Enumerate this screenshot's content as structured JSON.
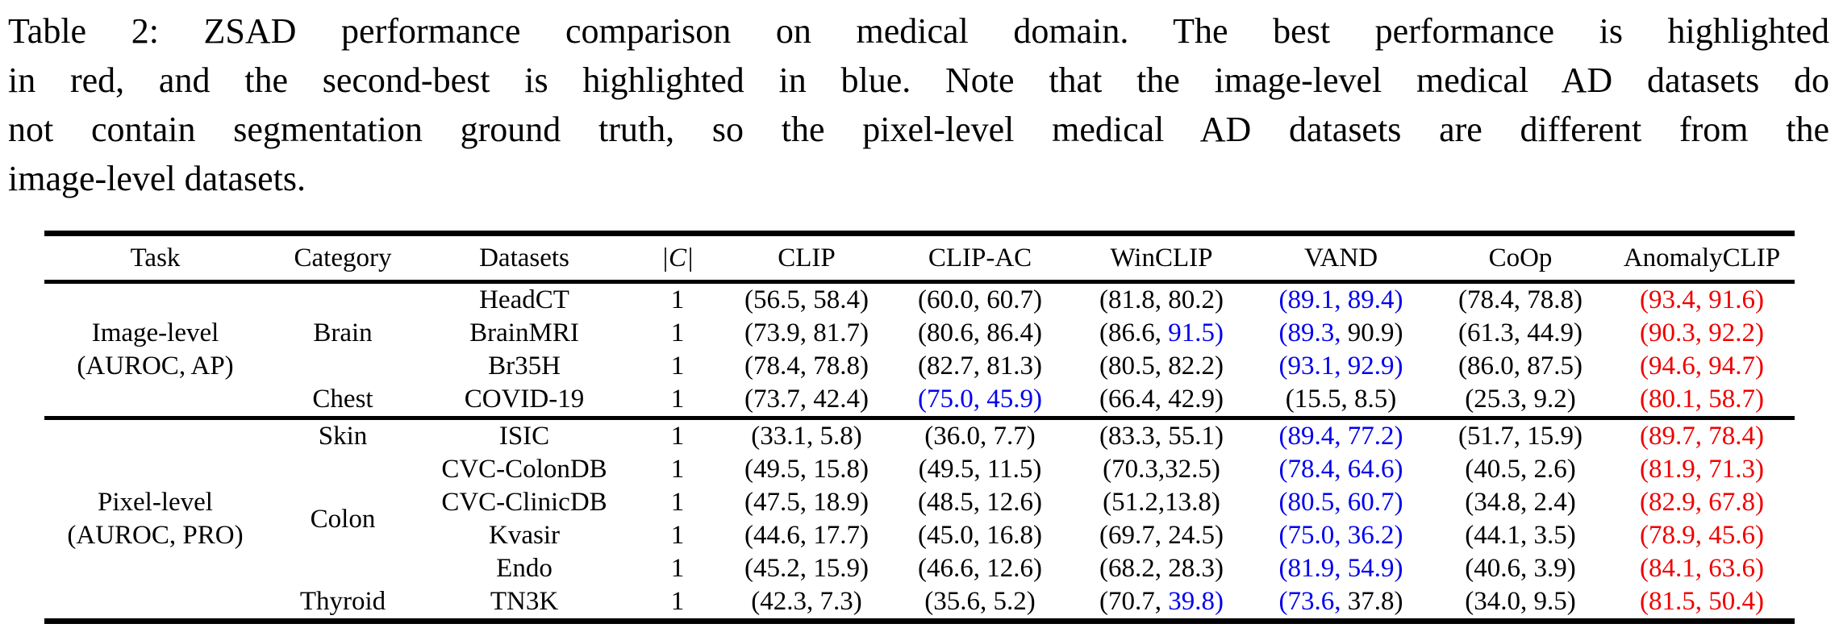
{
  "caption": {
    "lines": [
      "Table 2: ZSAD performance comparison on medical domain. The best performance is highlighted",
      "in red, and the second-best is highlighted in blue. Note that the image-level medical AD datasets do",
      "not contain segmentation ground truth, so the pixel-level medical AD datasets are different from the",
      "image-level datasets."
    ]
  },
  "colors": {
    "k": "#000000",
    "r": "#ee0000",
    "b": "#0000ee"
  },
  "highlight_legend": {
    "best": "#ee0000",
    "second_best": "#0000ee",
    "normal": "#000000"
  },
  "table": {
    "headers": [
      "Task",
      "Category",
      "Datasets",
      "|C|",
      "CLIP",
      "CLIP-AC",
      "WinCLIP",
      "VAND",
      "CoOp",
      "AnomalyCLIP"
    ],
    "sections": [
      {
        "task_lines": [
          "Image-level",
          "(AUROC, AP)"
        ],
        "groups": [
          {
            "category": "Brain",
            "rows": [
              {
                "dataset": "HeadCT",
                "c": "1",
                "cells": [
                  [
                    "56.5",
                    "k",
                    "58.4",
                    "k"
                  ],
                  [
                    "60.0",
                    "k",
                    "60.7",
                    "k"
                  ],
                  [
                    "81.8",
                    "k",
                    "80.2",
                    "k"
                  ],
                  [
                    "89.1",
                    "b",
                    "89.4",
                    "b"
                  ],
                  [
                    "78.4",
                    "k",
                    "78.8",
                    "k"
                  ],
                  [
                    "93.4",
                    "r",
                    "91.6",
                    "r"
                  ]
                ]
              },
              {
                "dataset": "BrainMRI",
                "c": "1",
                "cells": [
                  [
                    "73.9",
                    "k",
                    "81.7",
                    "k"
                  ],
                  [
                    "80.6",
                    "k",
                    "86.4",
                    "k"
                  ],
                  [
                    "86.6",
                    "k",
                    "91.5",
                    "b"
                  ],
                  [
                    "89.3",
                    "b",
                    "90.9",
                    "k"
                  ],
                  [
                    "61.3",
                    "k",
                    "44.9",
                    "k"
                  ],
                  [
                    "90.3",
                    "r",
                    "92.2",
                    "r"
                  ]
                ]
              },
              {
                "dataset": "Br35H",
                "c": "1",
                "cells": [
                  [
                    "78.4",
                    "k",
                    "78.8",
                    "k"
                  ],
                  [
                    "82.7",
                    "k",
                    "81.3",
                    "k"
                  ],
                  [
                    "80.5",
                    "k",
                    "82.2",
                    "k"
                  ],
                  [
                    "93.1",
                    "b",
                    "92.9",
                    "b"
                  ],
                  [
                    "86.0",
                    "k",
                    "87.5",
                    "k"
                  ],
                  [
                    "94.6",
                    "r",
                    "94.7",
                    "r"
                  ]
                ]
              }
            ]
          },
          {
            "category": "Chest",
            "rows": [
              {
                "dataset": "COVID-19",
                "c": "1",
                "cells": [
                  [
                    "73.7",
                    "k",
                    "42.4",
                    "k"
                  ],
                  [
                    "75.0",
                    "b",
                    "45.9",
                    "b"
                  ],
                  [
                    "66.4",
                    "k",
                    "42.9",
                    "k"
                  ],
                  [
                    "15.5",
                    "k",
                    "8.5",
                    "k"
                  ],
                  [
                    "25.3",
                    "k",
                    "9.2",
                    "k"
                  ],
                  [
                    "80.1",
                    "r",
                    "58.7",
                    "r"
                  ]
                ]
              }
            ]
          }
        ]
      },
      {
        "task_lines": [
          "Pixel-level",
          "(AUROC, PRO)"
        ],
        "groups": [
          {
            "category": "Skin",
            "rows": [
              {
                "dataset": "ISIC",
                "c": "1",
                "cells": [
                  [
                    "33.1",
                    "k",
                    "5.8",
                    "k"
                  ],
                  [
                    "36.0",
                    "k",
                    "7.7",
                    "k"
                  ],
                  [
                    "83.3",
                    "k",
                    "55.1",
                    "k"
                  ],
                  [
                    "89.4",
                    "b",
                    "77.2",
                    "b"
                  ],
                  [
                    "51.7",
                    "k",
                    "15.9",
                    "k"
                  ],
                  [
                    "89.7",
                    "r",
                    "78.4",
                    "r"
                  ]
                ]
              }
            ]
          },
          {
            "category": "Colon",
            "rows": [
              {
                "dataset": "CVC-ColonDB",
                "c": "1",
                "cells": [
                  [
                    "49.5",
                    "k",
                    "15.8",
                    "k"
                  ],
                  [
                    "49.5",
                    "k",
                    "11.5",
                    "k"
                  ],
                  [
                    "70.3",
                    "k",
                    "32.5",
                    "k",
                    1
                  ],
                  [
                    "78.4",
                    "b",
                    "64.6",
                    "b"
                  ],
                  [
                    "40.5",
                    "k",
                    "2.6",
                    "k"
                  ],
                  [
                    "81.9",
                    "r",
                    "71.3",
                    "r"
                  ]
                ]
              },
              {
                "dataset": "CVC-ClinicDB",
                "c": "1",
                "cells": [
                  [
                    "47.5",
                    "k",
                    "18.9",
                    "k"
                  ],
                  [
                    "48.5",
                    "k",
                    "12.6",
                    "k"
                  ],
                  [
                    "51.2",
                    "k",
                    "13.8",
                    "k",
                    1
                  ],
                  [
                    "80.5",
                    "b",
                    "60.7",
                    "b"
                  ],
                  [
                    "34.8",
                    "k",
                    "2.4",
                    "k"
                  ],
                  [
                    "82.9",
                    "r",
                    "67.8",
                    "r"
                  ]
                ]
              },
              {
                "dataset": "Kvasir",
                "c": "1",
                "cells": [
                  [
                    "44.6",
                    "k",
                    "17.7",
                    "k"
                  ],
                  [
                    "45.0",
                    "k",
                    "16.8",
                    "k"
                  ],
                  [
                    "69.7",
                    "k",
                    "24.5",
                    "k"
                  ],
                  [
                    "75.0",
                    "b",
                    "36.2",
                    "b"
                  ],
                  [
                    "44.1",
                    "k",
                    "3.5",
                    "k"
                  ],
                  [
                    "78.9",
                    "r",
                    "45.6",
                    "r"
                  ]
                ]
              },
              {
                "dataset": "Endo",
                "c": "1",
                "cells": [
                  [
                    "45.2",
                    "k",
                    "15.9",
                    "k"
                  ],
                  [
                    "46.6",
                    "k",
                    "12.6",
                    "k"
                  ],
                  [
                    "68.2",
                    "k",
                    "28.3",
                    "k"
                  ],
                  [
                    "81.9",
                    "b",
                    "54.9",
                    "b"
                  ],
                  [
                    "40.6",
                    "k",
                    "3.9",
                    "k"
                  ],
                  [
                    "84.1",
                    "r",
                    "63.6",
                    "r"
                  ]
                ]
              }
            ]
          },
          {
            "category": "Thyroid",
            "rows": [
              {
                "dataset": "TN3K",
                "c": "1",
                "cells": [
                  [
                    "42.3",
                    "k",
                    "7.3",
                    "k"
                  ],
                  [
                    "35.6",
                    "k",
                    "5.2",
                    "k"
                  ],
                  [
                    "70.7",
                    "k",
                    "39.8",
                    "b"
                  ],
                  [
                    "73.6",
                    "b",
                    "37.8",
                    "k"
                  ],
                  [
                    "34.0",
                    "k",
                    "9.5",
                    "k"
                  ],
                  [
                    "81.5",
                    "r",
                    "50.4",
                    "r"
                  ]
                ]
              }
            ]
          }
        ]
      }
    ]
  }
}
